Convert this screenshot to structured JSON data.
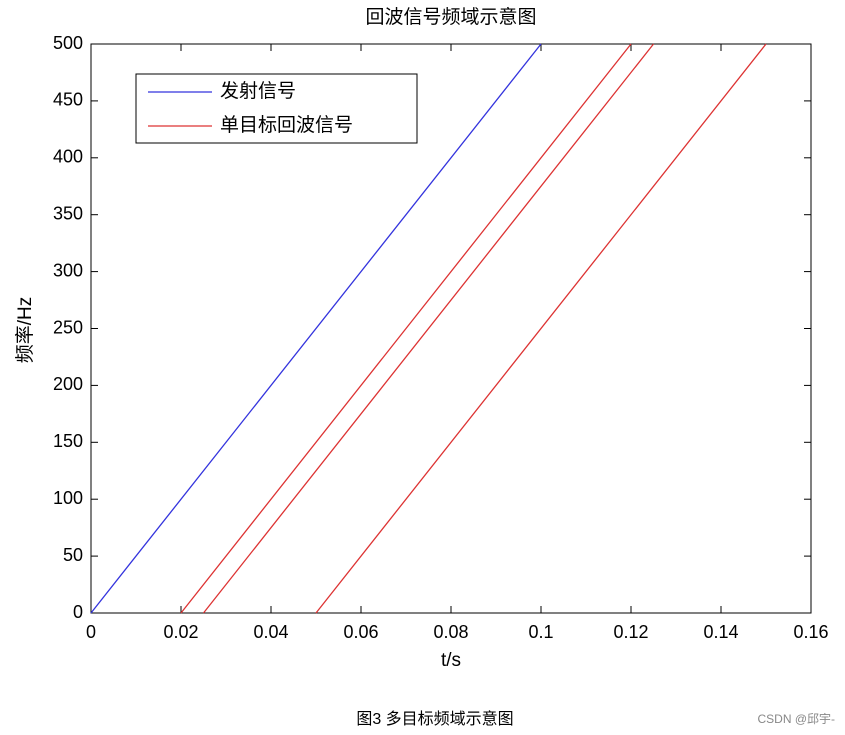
{
  "chart_data": {
    "type": "line",
    "title": "回波信号频域示意图",
    "xlabel": "t/s",
    "ylabel": "频率/Hz",
    "series": [
      {
        "name": "发射信号",
        "color": "#3333dd",
        "x": [
          0,
          0.1
        ],
        "values": [
          0,
          500
        ]
      },
      {
        "name": "单目标回波信号",
        "color": "#dd3333",
        "x": [
          0.02,
          0.12,
          null,
          0.025,
          0.125,
          null,
          0.05,
          0.15
        ],
        "values": [
          0,
          500,
          null,
          0,
          500,
          null,
          0,
          500
        ]
      }
    ],
    "xlim": [
      0,
      0.16
    ],
    "xticks": [
      0,
      0.02,
      0.04,
      0.06,
      0.08,
      0.1,
      0.12,
      0.14,
      0.16
    ],
    "ylim": [
      0,
      500
    ],
    "yticks": [
      0,
      50,
      100,
      150,
      200,
      250,
      300,
      350,
      400,
      450,
      500
    ],
    "grid": false,
    "legend": "upper left"
  },
  "caption": "图3 多目标频域示意图",
  "watermark": "CSDN @邱宇-"
}
